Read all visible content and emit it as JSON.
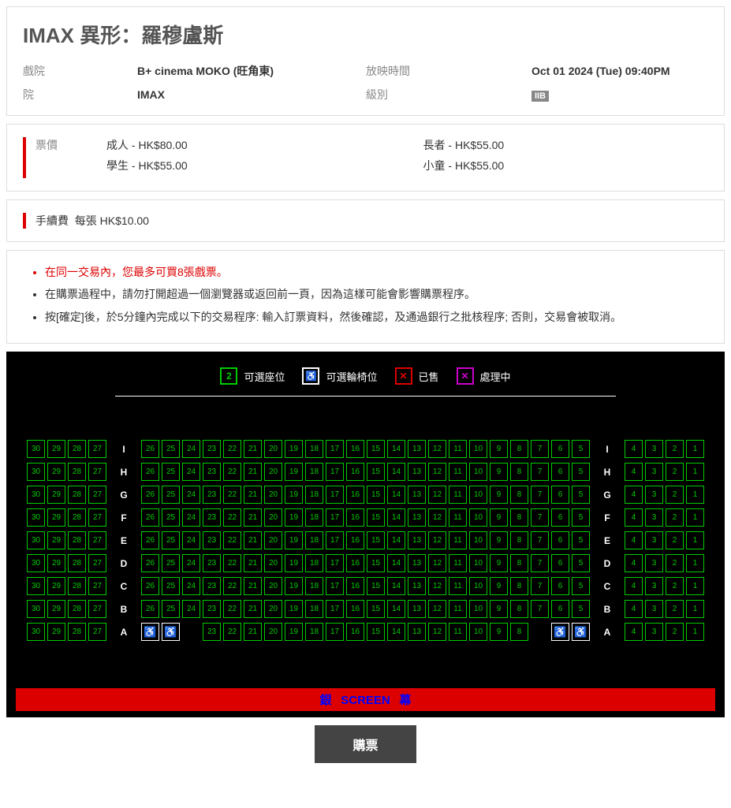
{
  "movie": {
    "title": "IMAX 異形：羅穆盧斯",
    "labels": {
      "cinema": "戲院",
      "house": "院",
      "showtime": "放映時間",
      "rating": "級別"
    },
    "cinema": "B+ cinema MOKO (旺角東)",
    "house": "IMAX",
    "showtime": "Oct 01 2024 (Tue) 09:40PM",
    "rating": "IIB"
  },
  "pricing": {
    "header": "票價",
    "items": [
      {
        "type": "成人",
        "price": "HK$80.00"
      },
      {
        "type": "學生",
        "price": "HK$55.00"
      },
      {
        "type": "長者",
        "price": "HK$55.00"
      },
      {
        "type": "小童",
        "price": "HK$55.00"
      }
    ],
    "fee_label": "手續費",
    "fee_text": "每張 HK$10.00"
  },
  "notices": [
    "在同一交易內，您最多可買8張戲票。",
    "在購票過程中，請勿打開超過一個瀏覽器或返回前一頁，因為這樣可能會影響購票程序。",
    "按[確定]後，於5分鐘內完成以下的交易程序: 輸入訂票資料，然後確認，及通過銀行之批核程序; 否則，交易會被取消。"
  ],
  "legend": {
    "available": {
      "symbol": "2",
      "label": "可選座位"
    },
    "wheelchair": {
      "symbol": "♿",
      "label": "可選輪椅位"
    },
    "sold": {
      "symbol": "✕",
      "label": "已售"
    },
    "processing": {
      "symbol": "✕",
      "label": "處理中"
    }
  },
  "seating": {
    "rows": [
      "I",
      "H",
      "G",
      "F",
      "E",
      "D",
      "C",
      "B",
      "A"
    ],
    "left_block": [
      30,
      29,
      28,
      27
    ],
    "mid_block": [
      26,
      25,
      24,
      23,
      22,
      21,
      20,
      19,
      18,
      17,
      16,
      15,
      14,
      13,
      12,
      11,
      10,
      9,
      8,
      7,
      6,
      5
    ],
    "mid_block_A": [
      23,
      22,
      21,
      20,
      19,
      18,
      17,
      16,
      15,
      14,
      13,
      12,
      11,
      10,
      9,
      8
    ],
    "right_block": [
      4,
      3,
      2,
      1
    ],
    "wheelchair_symbol": "♿",
    "colors": {
      "avail_border": "#00cc00",
      "wheel_border": "#ffffff",
      "bg": "#000000"
    }
  },
  "screen": {
    "zh1": "銀",
    "en": "SCREEN",
    "zh2": "幕"
  },
  "buy_label": "購票"
}
